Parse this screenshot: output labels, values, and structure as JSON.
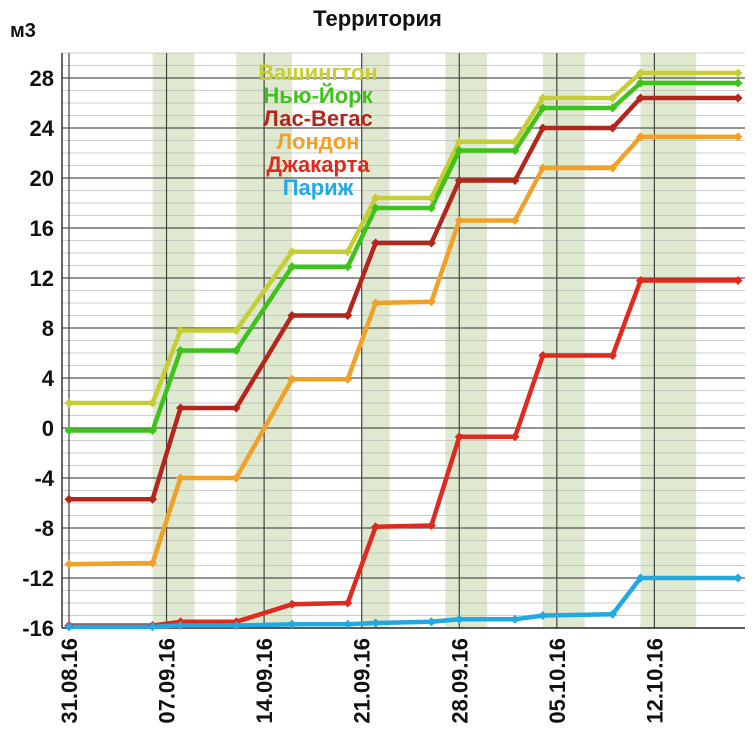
{
  "chart_data": {
    "type": "line",
    "title": "Территория",
    "ylabel": "м3",
    "ylim": [
      -16,
      30
    ],
    "yticks": [
      28,
      24,
      20,
      16,
      12,
      8,
      4,
      0,
      -4,
      -8,
      -12,
      -16
    ],
    "ytick_labels": [
      "28",
      "24",
      "20",
      "16",
      "12",
      "8",
      "4",
      "0",
      "-4",
      "-8",
      "-12",
      "-16"
    ],
    "xtick_labels": [
      "31.08.16",
      "07.09.16",
      "14.09.16",
      "21.09.16",
      "28.09.16",
      "05.10.16",
      "12.10.16"
    ],
    "xtick_positions": [
      0,
      7,
      14,
      21,
      28,
      35,
      42
    ],
    "xlim": [
      -0.5,
      48.5
    ],
    "shaded_bands": [
      [
        6,
        9
      ],
      [
        12,
        16
      ],
      [
        21,
        23
      ],
      [
        27,
        30
      ],
      [
        34,
        37
      ],
      [
        41,
        45
      ]
    ],
    "grid": true,
    "legend_placement": "top-center",
    "x": [
      0,
      6,
      8,
      12,
      16,
      20,
      22,
      26,
      28,
      32,
      34,
      39,
      41,
      48
    ],
    "series": [
      {
        "name": "Вашингтон",
        "color": "#c6cd36",
        "values": [
          2.0,
          2.0,
          7.8,
          7.8,
          14.1,
          14.1,
          18.4,
          18.4,
          22.9,
          22.9,
          26.4,
          26.4,
          28.4,
          28.4
        ]
      },
      {
        "name": "Нью-Йорк",
        "color": "#3ec21c",
        "values": [
          -0.2,
          -0.2,
          6.2,
          6.2,
          12.9,
          12.9,
          17.6,
          17.6,
          22.2,
          22.2,
          25.6,
          25.6,
          27.6,
          27.6
        ]
      },
      {
        "name": "Лас-Вегас",
        "color": "#b2261c",
        "values": [
          -5.7,
          -5.7,
          1.6,
          1.6,
          9.0,
          9.0,
          14.8,
          14.8,
          19.8,
          19.8,
          24.0,
          24.0,
          26.4,
          26.4
        ]
      },
      {
        "name": "Лондон",
        "color": "#f0a128",
        "values": [
          -10.9,
          -10.8,
          -4.0,
          -4.0,
          3.9,
          3.9,
          10.0,
          10.1,
          16.6,
          16.6,
          20.8,
          20.8,
          23.3,
          23.3
        ]
      },
      {
        "name": "Джакарта",
        "color": "#e02a1e",
        "values": [
          -15.8,
          -15.8,
          -15.5,
          -15.5,
          -14.1,
          -14.0,
          -7.9,
          -7.8,
          -0.7,
          -0.7,
          5.8,
          5.8,
          11.8,
          11.8
        ]
      },
      {
        "name": "Париж",
        "color": "#22a9e0",
        "values": [
          -15.9,
          -15.9,
          -15.8,
          -15.8,
          -15.7,
          -15.7,
          -15.6,
          -15.5,
          -15.3,
          -15.3,
          -15.0,
          -14.9,
          -12.0,
          -12.0
        ]
      }
    ]
  }
}
